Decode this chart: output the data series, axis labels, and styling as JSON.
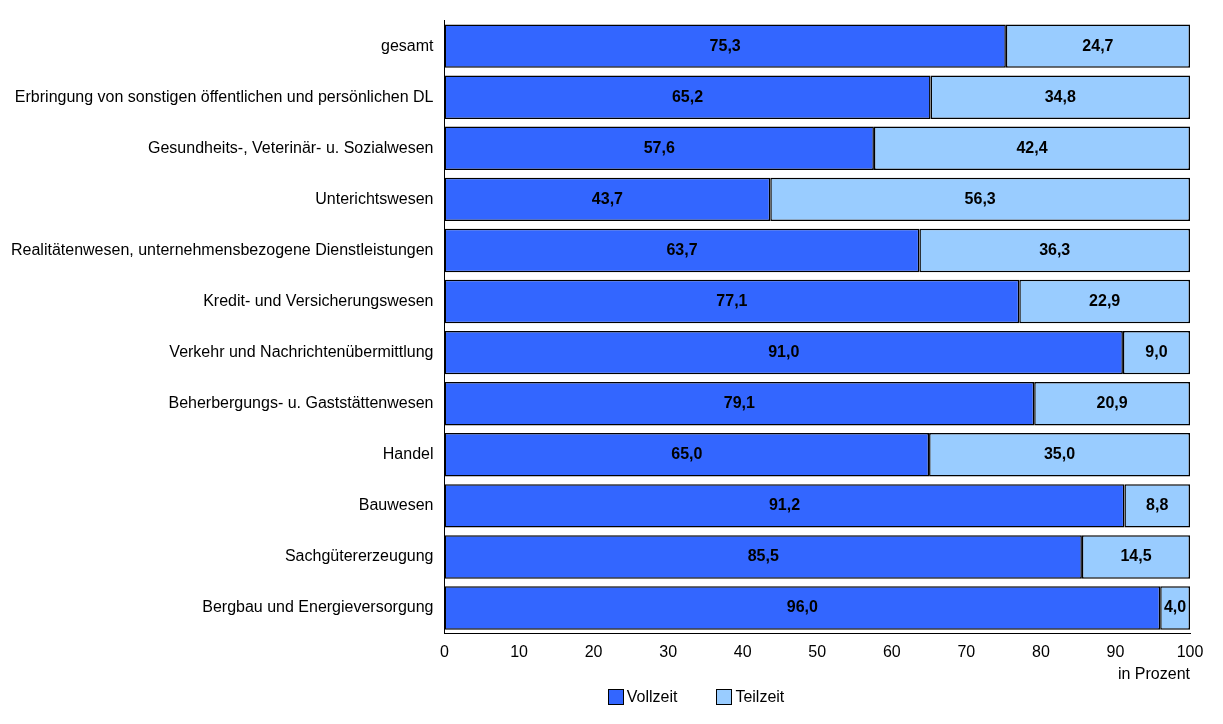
{
  "chart_data": {
    "type": "bar",
    "orientation": "horizontal",
    "stacked": true,
    "xlabel": "in Prozent",
    "categories": [
      "gesamt",
      "Erbringung von sonstigen öffentlichen und persönlichen DL",
      "Gesundheits-, Veterinär- u. Sozialwesen",
      "Unterichtswesen",
      "Realitätenwesen, unternehmensbezogene Dienstleistungen",
      "Kredit- und Versicherungswesen",
      "Verkehr und Nachrichtenübermittlung",
      "Beherbergungs- u. Gaststättenwesen",
      "Handel",
      "Bauwesen",
      "Sachgütererzeugung",
      "Bergbau und Energieversorgung"
    ],
    "series": [
      {
        "name": "Vollzeit",
        "color": "#3366ff",
        "values": [
          75.3,
          65.2,
          57.6,
          43.7,
          63.7,
          77.1,
          91.0,
          79.1,
          65.0,
          91.2,
          85.5,
          96.0
        ],
        "value_labels": [
          "75,3",
          "65,2",
          "57,6",
          "43,7",
          "63,7",
          "77,1",
          "91,0",
          "79,1",
          "65,0",
          "91,2",
          "85,5",
          "96,0"
        ]
      },
      {
        "name": "Teilzeit",
        "color": "#99ccff",
        "values": [
          24.7,
          34.8,
          42.4,
          56.3,
          36.3,
          22.9,
          9.0,
          20.9,
          35.0,
          8.8,
          14.5,
          4.0
        ],
        "value_labels": [
          "24,7",
          "34,8",
          "42,4",
          "56,3",
          "36,3",
          "22,9",
          "9,0",
          "20,9",
          "35,0",
          "8,8",
          "14,5",
          "4,0"
        ]
      }
    ],
    "xlim": [
      0,
      100
    ],
    "xticks": [
      0,
      10,
      20,
      30,
      40,
      50,
      60,
      70,
      80,
      90,
      100
    ],
    "grid": false,
    "legend": "bottom"
  }
}
